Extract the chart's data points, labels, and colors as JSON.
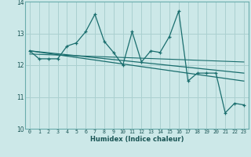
{
  "xlabel": "Humidex (Indice chaleur)",
  "bg_color": "#cce8e8",
  "grid_color": "#aad0d0",
  "line_color": "#1a6e6e",
  "spine_color": "#6aadad",
  "tick_color": "#1a5555",
  "xlim": [
    -0.5,
    23.5
  ],
  "ylim": [
    10,
    14
  ],
  "xticks": [
    0,
    1,
    2,
    3,
    4,
    5,
    6,
    7,
    8,
    9,
    10,
    11,
    12,
    13,
    14,
    15,
    16,
    17,
    18,
    19,
    20,
    21,
    22,
    23
  ],
  "yticks": [
    10,
    11,
    12,
    13,
    14
  ],
  "main_x": [
    0,
    1,
    2,
    3,
    4,
    5,
    6,
    7,
    8,
    9,
    10,
    11,
    12,
    13,
    14,
    15,
    16,
    17,
    18,
    19,
    20,
    21,
    22,
    23
  ],
  "main_y": [
    12.45,
    12.2,
    12.2,
    12.2,
    12.6,
    12.7,
    13.05,
    13.6,
    12.75,
    12.4,
    12.0,
    13.05,
    12.1,
    12.45,
    12.4,
    12.9,
    13.7,
    11.5,
    11.75,
    11.75,
    11.75,
    10.5,
    10.8,
    10.75
  ],
  "trend1_x": [
    0,
    23
  ],
  "trend1_y": [
    12.45,
    11.75
  ],
  "trend2_x": [
    0,
    23
  ],
  "trend2_y": [
    12.45,
    11.5
  ],
  "trend3_x": [
    0,
    23
  ],
  "trend3_y": [
    12.35,
    12.1
  ],
  "xlabel_fontsize": 6.0,
  "xlabel_bold": true,
  "xtick_fontsize": 4.8,
  "ytick_fontsize": 5.5
}
